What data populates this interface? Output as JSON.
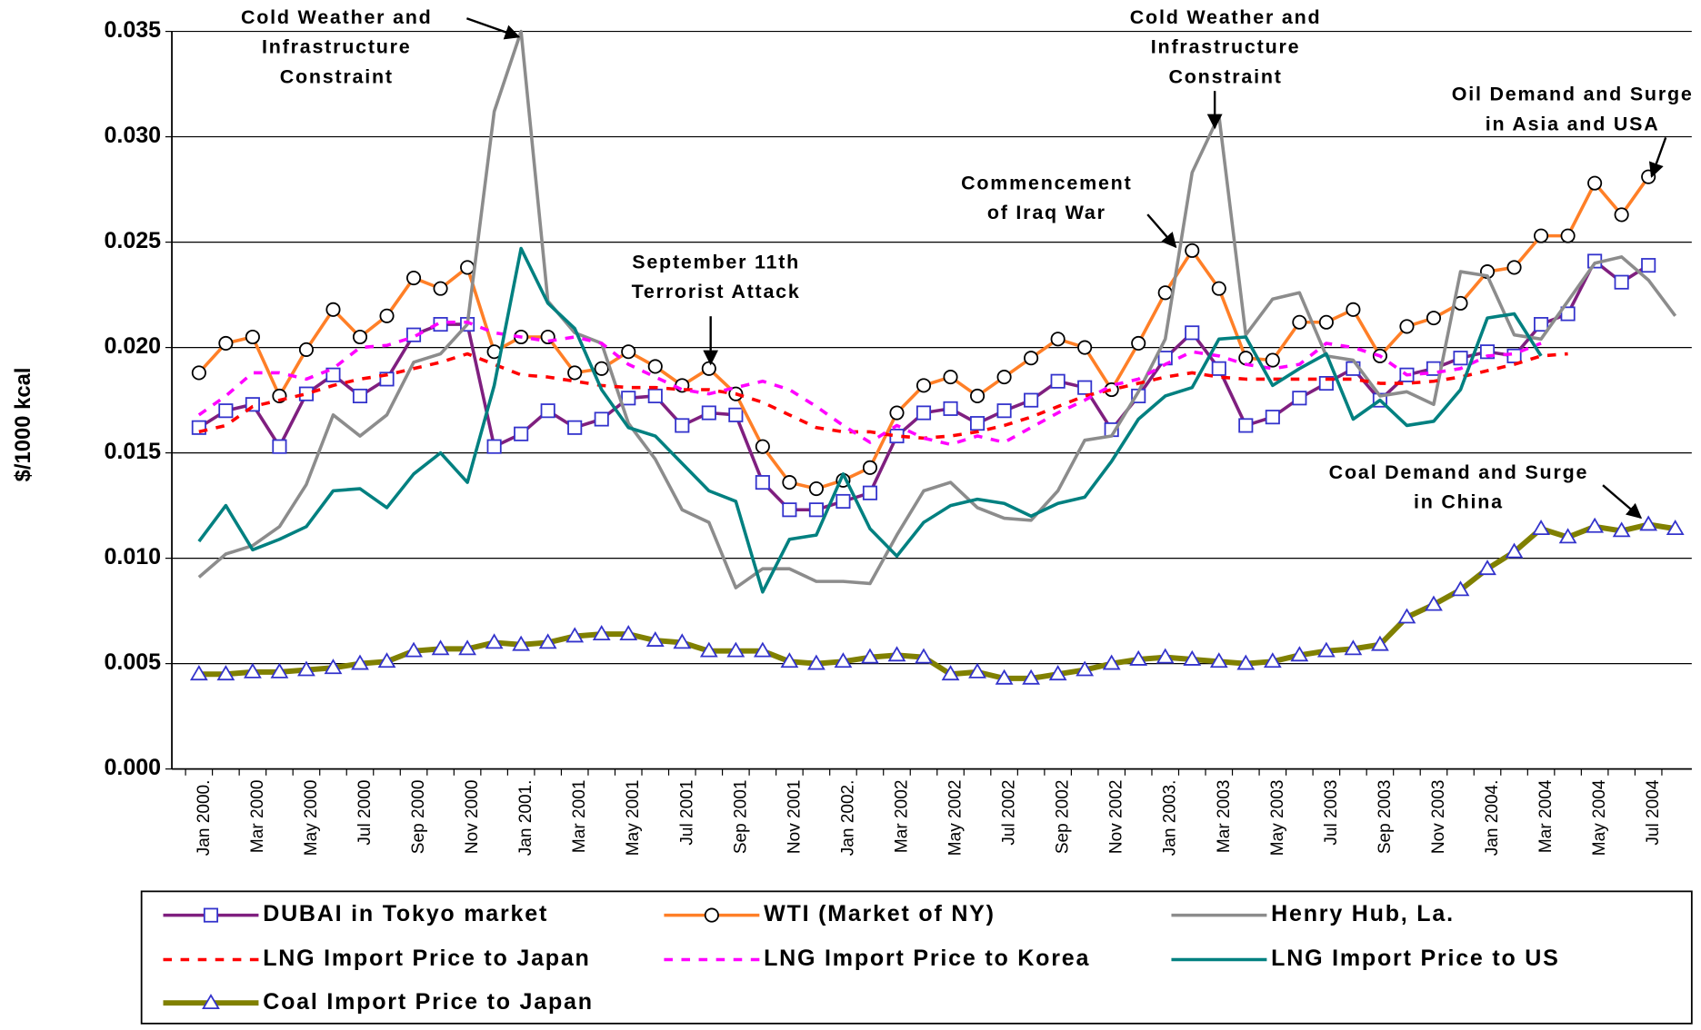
{
  "chart_data": {
    "type": "line",
    "y_label": "$/1000 kcal",
    "categories": [
      "Jan 2000.",
      null,
      "Mar 2000",
      null,
      "May 2000",
      null,
      "Jul 2000",
      null,
      "Sep 2000",
      null,
      "Nov 2000",
      null,
      "Jan 2001.",
      null,
      "Mar 2001",
      null,
      "May 2001",
      null,
      "Jul 2001",
      null,
      "Sep 2001",
      null,
      "Nov 2001",
      null,
      "Jan 2002.",
      null,
      "Mar 2002",
      null,
      "May 2002",
      null,
      "Jul 2002",
      null,
      "Sep 2002",
      null,
      "Nov 2002",
      null,
      "Jan 2003.",
      null,
      "Mar 2003",
      null,
      "May 2003",
      null,
      "Jul 2003",
      null,
      "Sep 2003",
      null,
      "Nov 2003",
      null,
      "Jan 2004.",
      null,
      "Mar 2004",
      null,
      "May 2004",
      null,
      "Jul 2004",
      null
    ],
    "ylim": [
      0,
      0.035
    ],
    "yticks": [
      {
        "value": 0,
        "label": "0.000"
      },
      {
        "value": 0.005,
        "label": "0.005"
      },
      {
        "value": 0.01,
        "label": "0.010"
      },
      {
        "value": 0.015,
        "label": "0.015"
      },
      {
        "value": 0.02,
        "label": "0.020"
      },
      {
        "value": 0.025,
        "label": "0.025"
      },
      {
        "value": 0.03,
        "label": "0.030"
      },
      {
        "value": 0.035,
        "label": "0.035"
      }
    ],
    "grid": true,
    "legend": "bottom",
    "series": [
      {
        "name": "DUBAI in Tokyo market",
        "color": "#7f1f7f",
        "marker": "square",
        "marker_color": "#3333cc",
        "dash": false,
        "values": [
          0.0162,
          0.017,
          0.0173,
          0.0153,
          0.0178,
          0.0187,
          0.0177,
          0.0185,
          0.0206,
          0.0211,
          0.0211,
          0.0153,
          0.0159,
          0.017,
          0.0162,
          0.0166,
          0.0176,
          0.0177,
          0.0163,
          0.0169,
          0.0168,
          0.0136,
          0.0123,
          0.0123,
          0.0127,
          0.0131,
          0.0158,
          0.0169,
          0.0171,
          0.0164,
          0.017,
          0.0175,
          0.0184,
          0.0181,
          0.0161,
          0.0177,
          0.0195,
          0.0207,
          0.019,
          0.0163,
          0.0167,
          0.0176,
          0.0183,
          0.019,
          0.0175,
          0.0187,
          0.019,
          0.0195,
          0.0198,
          0.0196,
          0.0211,
          0.0216,
          0.0241,
          0.0231,
          0.0239,
          null
        ]
      },
      {
        "name": "WTI (Market of NY)",
        "color": "#ff7f27",
        "marker": "circle",
        "marker_color": "#000000",
        "dash": false,
        "values": [
          0.0188,
          0.0202,
          0.0205,
          0.0177,
          0.0199,
          0.0218,
          0.0205,
          0.0215,
          0.0233,
          0.0228,
          0.0238,
          0.0198,
          0.0205,
          0.0205,
          0.0188,
          0.019,
          0.0198,
          0.0191,
          0.0182,
          0.019,
          0.0178,
          0.0153,
          0.0136,
          0.0133,
          0.0137,
          0.0143,
          0.0169,
          0.0182,
          0.0186,
          0.0177,
          0.0186,
          0.0195,
          0.0204,
          0.02,
          0.018,
          0.0202,
          0.0226,
          0.0246,
          0.0228,
          0.0195,
          0.0194,
          0.0212,
          0.0212,
          0.0218,
          0.0196,
          0.021,
          0.0214,
          0.0221,
          0.0236,
          0.0238,
          0.0253,
          0.0253,
          0.0278,
          0.0263,
          0.0281,
          null
        ]
      },
      {
        "name": "Henry Hub, La.",
        "color": "#8c8c8c",
        "marker": "none",
        "marker_color": "#8c8c8c",
        "dash": false,
        "values": [
          0.0091,
          0.0102,
          0.0106,
          0.0115,
          0.0135,
          0.0168,
          0.0158,
          0.0168,
          0.0193,
          0.0197,
          0.0211,
          0.0312,
          0.035,
          0.0222,
          0.0207,
          0.0202,
          0.0164,
          0.0147,
          0.0123,
          0.0117,
          0.0086,
          0.0095,
          0.0095,
          0.0089,
          0.0089,
          0.0088,
          0.0111,
          0.0132,
          0.0136,
          0.0124,
          0.0119,
          0.0118,
          0.0132,
          0.0156,
          0.0158,
          0.0179,
          0.0204,
          0.0283,
          0.031,
          0.0206,
          0.0223,
          0.0226,
          0.0196,
          0.0194,
          0.0177,
          0.0179,
          0.0173,
          0.0236,
          0.0234,
          0.0206,
          0.0204,
          0.0222,
          0.024,
          0.0243,
          0.0232,
          0.0215
        ]
      },
      {
        "name": "LNG Import Price to Japan",
        "color": "#ff0000",
        "marker": "none",
        "marker_color": "#ff0000",
        "dash": true,
        "values": [
          0.016,
          0.0163,
          0.0172,
          0.0175,
          0.0178,
          0.0182,
          0.0185,
          0.0187,
          0.019,
          0.0193,
          0.0197,
          0.0192,
          0.0187,
          0.0186,
          0.0184,
          0.0182,
          0.0181,
          0.0181,
          0.018,
          0.018,
          0.0178,
          0.0174,
          0.0168,
          0.0162,
          0.016,
          0.016,
          0.0158,
          0.0157,
          0.0158,
          0.016,
          0.0163,
          0.0167,
          0.0172,
          0.0177,
          0.018,
          0.0183,
          0.0186,
          0.0188,
          0.0186,
          0.0185,
          0.0185,
          0.0185,
          0.0185,
          0.0185,
          0.0183,
          0.0183,
          0.0184,
          0.0186,
          0.0189,
          0.0192,
          0.0196,
          0.0197,
          null,
          null,
          null,
          null
        ]
      },
      {
        "name": "LNG Import Price to Korea",
        "color": "#ff00ff",
        "marker": "none",
        "marker_color": "#ff00ff",
        "dash": true,
        "values": [
          0.0168,
          0.0177,
          0.0188,
          0.0188,
          0.0185,
          0.019,
          0.02,
          0.0201,
          0.0205,
          0.0212,
          0.0212,
          0.0207,
          0.0205,
          0.0203,
          0.0205,
          0.0202,
          0.0192,
          0.0186,
          0.018,
          0.0178,
          0.0181,
          0.0184,
          0.018,
          0.0172,
          0.0163,
          0.0155,
          0.0163,
          0.0157,
          0.0154,
          0.0158,
          0.0155,
          0.0162,
          0.0169,
          0.0175,
          0.0182,
          0.0185,
          0.0192,
          0.0198,
          0.0196,
          0.0192,
          0.019,
          0.0192,
          0.0202,
          0.02,
          0.0196,
          0.0187,
          0.0188,
          0.019,
          0.0196,
          0.0197,
          0.0202,
          null,
          null,
          null,
          null,
          null
        ]
      },
      {
        "name": "LNG Import Price to US",
        "color": "#008080",
        "marker": "none",
        "marker_color": "#008080",
        "dash": false,
        "values": [
          0.0108,
          0.0125,
          0.0104,
          0.0109,
          0.0115,
          0.0132,
          0.0133,
          0.0124,
          0.014,
          0.015,
          0.0136,
          0.0182,
          0.0247,
          0.0221,
          0.0209,
          0.018,
          0.0162,
          0.0158,
          0.0145,
          0.0132,
          0.0127,
          0.0084,
          0.0109,
          0.0111,
          0.014,
          0.0114,
          0.0101,
          0.0117,
          0.0125,
          0.0128,
          0.0126,
          0.012,
          0.0126,
          0.0129,
          0.0146,
          0.0166,
          0.0177,
          0.0181,
          0.0204,
          0.0205,
          0.0182,
          0.019,
          0.0197,
          0.0166,
          0.0175,
          0.0163,
          0.0165,
          0.018,
          0.0214,
          0.0216,
          0.0196,
          null,
          null,
          null,
          null,
          null
        ]
      },
      {
        "name": "Coal Import Price to Japan",
        "color": "#808000",
        "marker": "triangle",
        "marker_color": "#3333cc",
        "dash": false,
        "values": [
          0.0045,
          0.0045,
          0.0046,
          0.0046,
          0.0047,
          0.0048,
          0.005,
          0.0051,
          0.0056,
          0.0057,
          0.0057,
          0.006,
          0.0059,
          0.006,
          0.0063,
          0.0064,
          0.0064,
          0.0061,
          0.006,
          0.0056,
          0.0056,
          0.0056,
          0.0051,
          0.005,
          0.0051,
          0.0053,
          0.0054,
          0.0053,
          0.0045,
          0.0046,
          0.0043,
          0.0043,
          0.0045,
          0.0047,
          0.005,
          0.0052,
          0.0053,
          0.0052,
          0.0051,
          0.005,
          0.0051,
          0.0054,
          0.0056,
          0.0057,
          0.0059,
          0.0072,
          0.0078,
          0.0085,
          0.0095,
          0.0103,
          0.0114,
          0.011,
          0.0115,
          0.0113,
          0.0116,
          0.0114
        ]
      }
    ],
    "annotations": [
      {
        "lines": [
          "Cold Weather and",
          "Infrastructure",
          "Constraint"
        ]
      },
      {
        "lines": [
          "September 11th",
          "Terrorist Attack"
        ]
      },
      {
        "lines": [
          "Commencement",
          "of Iraq War"
        ]
      },
      {
        "lines": [
          "Cold Weather and",
          "Infrastructure",
          "Constraint"
        ]
      },
      {
        "lines": [
          "Oil Demand and Surge",
          "in Asia and USA"
        ]
      },
      {
        "lines": [
          "Coal Demand and Surge",
          "in China"
        ]
      }
    ]
  }
}
